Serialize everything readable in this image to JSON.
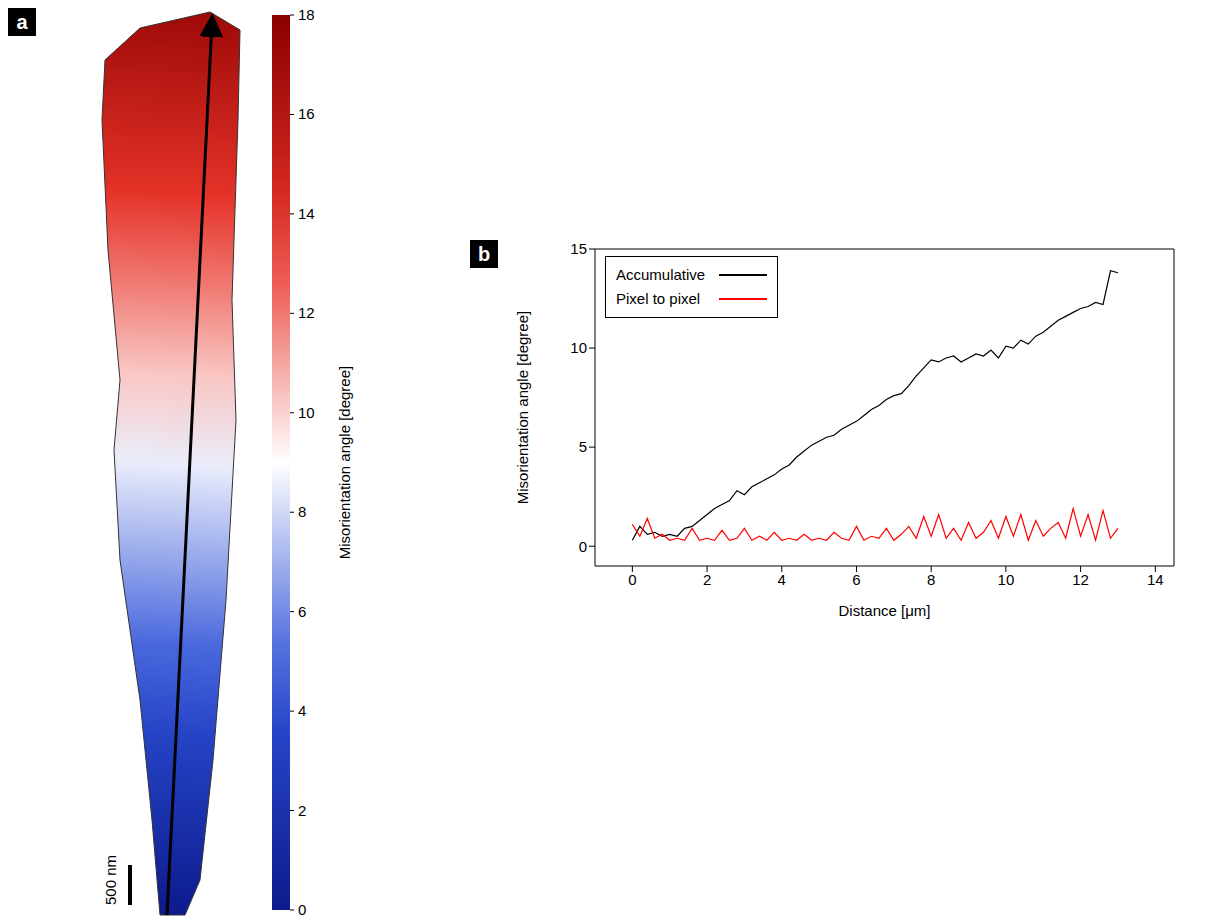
{
  "chart_data": [
    {
      "type": "map",
      "panel_label": "a",
      "scale_bar": "500 nm",
      "colorbar": {
        "label": "Misorientation angle [degree]",
        "range": [
          0,
          18
        ],
        "ticks": [
          0,
          2,
          4,
          6,
          8,
          10,
          12,
          14,
          16,
          18
        ]
      }
    },
    {
      "type": "line",
      "panel_label": "b",
      "x_label": "Distance [μm]",
      "y_label": "Misorientation angle [degree]",
      "x": [
        0,
        0.2,
        0.4,
        0.6,
        0.8,
        1.0,
        1.2,
        1.4,
        1.6,
        1.8,
        2.0,
        2.2,
        2.4,
        2.6,
        2.8,
        3.0,
        3.2,
        3.4,
        3.6,
        3.8,
        4.0,
        4.2,
        4.4,
        4.6,
        4.8,
        5.0,
        5.2,
        5.4,
        5.6,
        5.8,
        6.0,
        6.2,
        6.4,
        6.6,
        6.8,
        7.0,
        7.2,
        7.4,
        7.6,
        7.8,
        8.0,
        8.2,
        8.4,
        8.6,
        8.8,
        9.0,
        9.2,
        9.4,
        9.6,
        9.8,
        10.0,
        10.2,
        10.4,
        10.6,
        10.8,
        11.0,
        11.2,
        11.4,
        11.6,
        11.8,
        12.0,
        12.2,
        12.4,
        12.6,
        12.8,
        13.0
      ],
      "series": [
        {
          "name": "Accumulative",
          "color": "#000000",
          "values": [
            0.3,
            1.0,
            0.6,
            0.7,
            0.5,
            0.6,
            0.5,
            0.9,
            1.0,
            1.3,
            1.6,
            1.9,
            2.1,
            2.3,
            2.8,
            2.6,
            3.0,
            3.2,
            3.4,
            3.6,
            3.9,
            4.1,
            4.5,
            4.8,
            5.1,
            5.3,
            5.5,
            5.6,
            5.9,
            6.1,
            6.3,
            6.6,
            6.9,
            7.1,
            7.4,
            7.6,
            7.7,
            8.1,
            8.6,
            9.0,
            9.4,
            9.3,
            9.5,
            9.6,
            9.3,
            9.5,
            9.7,
            9.6,
            9.9,
            9.5,
            10.1,
            10.0,
            10.4,
            10.2,
            10.6,
            10.8,
            11.1,
            11.4,
            11.6,
            11.8,
            12.0,
            12.1,
            12.3,
            12.2,
            13.9,
            13.8
          ]
        },
        {
          "name": "Pixel to pixel",
          "color": "#ff0000",
          "values": [
            1.1,
            0.5,
            1.4,
            0.4,
            0.6,
            0.3,
            0.4,
            0.3,
            0.9,
            0.3,
            0.4,
            0.3,
            0.8,
            0.3,
            0.4,
            0.9,
            0.3,
            0.5,
            0.3,
            0.7,
            0.3,
            0.4,
            0.3,
            0.6,
            0.3,
            0.4,
            0.3,
            0.7,
            0.4,
            0.3,
            1.0,
            0.3,
            0.5,
            0.4,
            0.9,
            0.3,
            0.6,
            1.0,
            0.4,
            1.5,
            0.5,
            1.6,
            0.4,
            0.9,
            0.3,
            1.2,
            0.4,
            0.7,
            1.3,
            0.4,
            1.5,
            0.5,
            1.6,
            0.3,
            1.3,
            0.5,
            0.9,
            1.2,
            0.4,
            1.9,
            0.5,
            1.6,
            0.3,
            1.8,
            0.4,
            0.9
          ]
        }
      ],
      "xlim": [
        -1,
        14.5
      ],
      "xticks": [
        0,
        2,
        4,
        6,
        8,
        10,
        12,
        14
      ],
      "ylim": [
        -1,
        15
      ],
      "yticks": [
        0,
        5,
        10,
        15
      ],
      "legend": "upper left"
    }
  ]
}
